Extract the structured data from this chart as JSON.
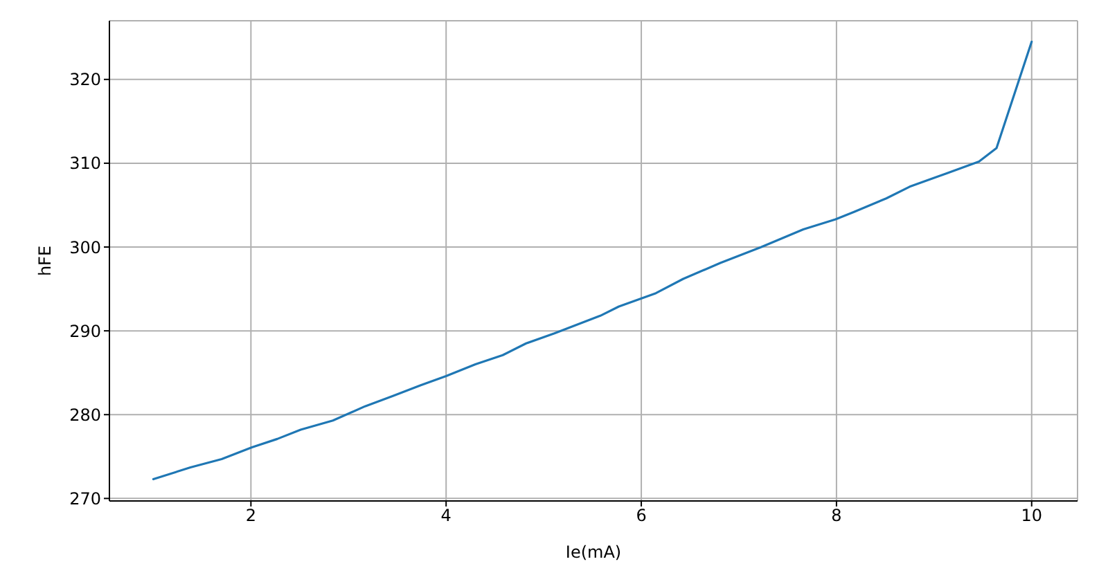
{
  "chart_data": {
    "type": "line",
    "xlabel": "Ie(mA)",
    "ylabel": "hFE",
    "x": [
      1.0,
      1.38,
      1.7,
      2.01,
      2.27,
      2.51,
      2.84,
      3.17,
      3.45,
      3.74,
      4.0,
      4.3,
      4.58,
      4.82,
      5.11,
      5.58,
      5.77,
      6.15,
      6.43,
      6.81,
      7.23,
      7.66,
      7.99,
      8.18,
      8.51,
      8.75,
      9.13,
      9.46,
      9.64,
      10.0
    ],
    "values": [
      272.3,
      273.7,
      274.7,
      276.1,
      277.1,
      278.2,
      279.3,
      281.0,
      282.2,
      283.5,
      284.6,
      286.0,
      287.1,
      288.5,
      289.7,
      291.8,
      292.9,
      294.5,
      296.2,
      298.1,
      300.0,
      302.1,
      303.3,
      304.2,
      305.8,
      307.2,
      308.8,
      310.2,
      311.8,
      324.5
    ],
    "color": "#1f77b4",
    "xlim": [
      0.55,
      10.47
    ],
    "xticks": [
      2,
      4,
      6,
      8,
      10
    ],
    "ylim": [
      269.7,
      327.0
    ],
    "yticks": [
      270,
      280,
      290,
      300,
      310,
      320
    ],
    "grid": true
  }
}
